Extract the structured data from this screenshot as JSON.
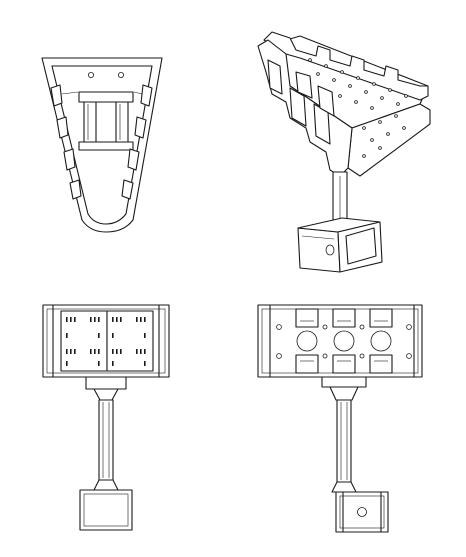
{
  "drawing": {
    "style": "technical line drawing",
    "line_color": "#1a1a1a",
    "background_color": "#ffffff",
    "views": [
      {
        "id": "top",
        "projection": "orthographic"
      },
      {
        "id": "isometric",
        "projection": "isometric"
      },
      {
        "id": "front",
        "projection": "orthographic"
      },
      {
        "id": "side",
        "projection": "orthographic"
      }
    ]
  }
}
